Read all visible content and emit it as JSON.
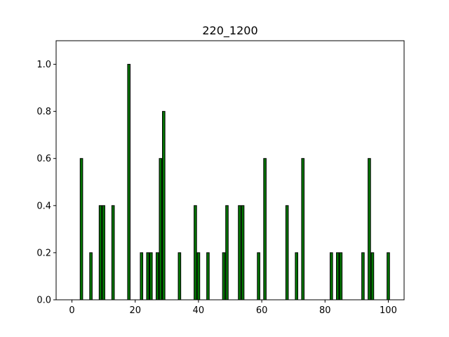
{
  "chart_data": {
    "type": "bar",
    "title": "220_1200",
    "xlabel": "",
    "ylabel": "",
    "xlim": [
      -5,
      105
    ],
    "ylim": [
      0,
      1.1
    ],
    "xticks": [
      0,
      20,
      40,
      60,
      80,
      100
    ],
    "yticks": [
      0.0,
      0.2,
      0.4,
      0.6,
      0.8,
      1.0
    ],
    "xtick_labels": [
      "0",
      "20",
      "40",
      "60",
      "80",
      "100"
    ],
    "ytick_labels": [
      "0.0",
      "0.2",
      "0.4",
      "0.6",
      "0.8",
      "1.0"
    ],
    "grid": false,
    "bar_color": "#007500",
    "edge_color": "#000000",
    "x": [
      3,
      6,
      9,
      10,
      13,
      18,
      22,
      24,
      25,
      27,
      28,
      29,
      34,
      39,
      40,
      43,
      48,
      49,
      53,
      54,
      59,
      61,
      68,
      71,
      73,
      82,
      84,
      85,
      92,
      94,
      95,
      100
    ],
    "values": [
      0.6,
      0.2,
      0.4,
      0.4,
      0.4,
      1.0,
      0.2,
      0.2,
      0.2,
      0.2,
      0.6,
      0.8,
      0.2,
      0.4,
      0.2,
      0.2,
      0.2,
      0.4,
      0.4,
      0.4,
      0.2,
      0.6,
      0.4,
      0.2,
      0.6,
      0.2,
      0.2,
      0.2,
      0.2,
      0.6,
      0.2,
      0.2
    ]
  }
}
